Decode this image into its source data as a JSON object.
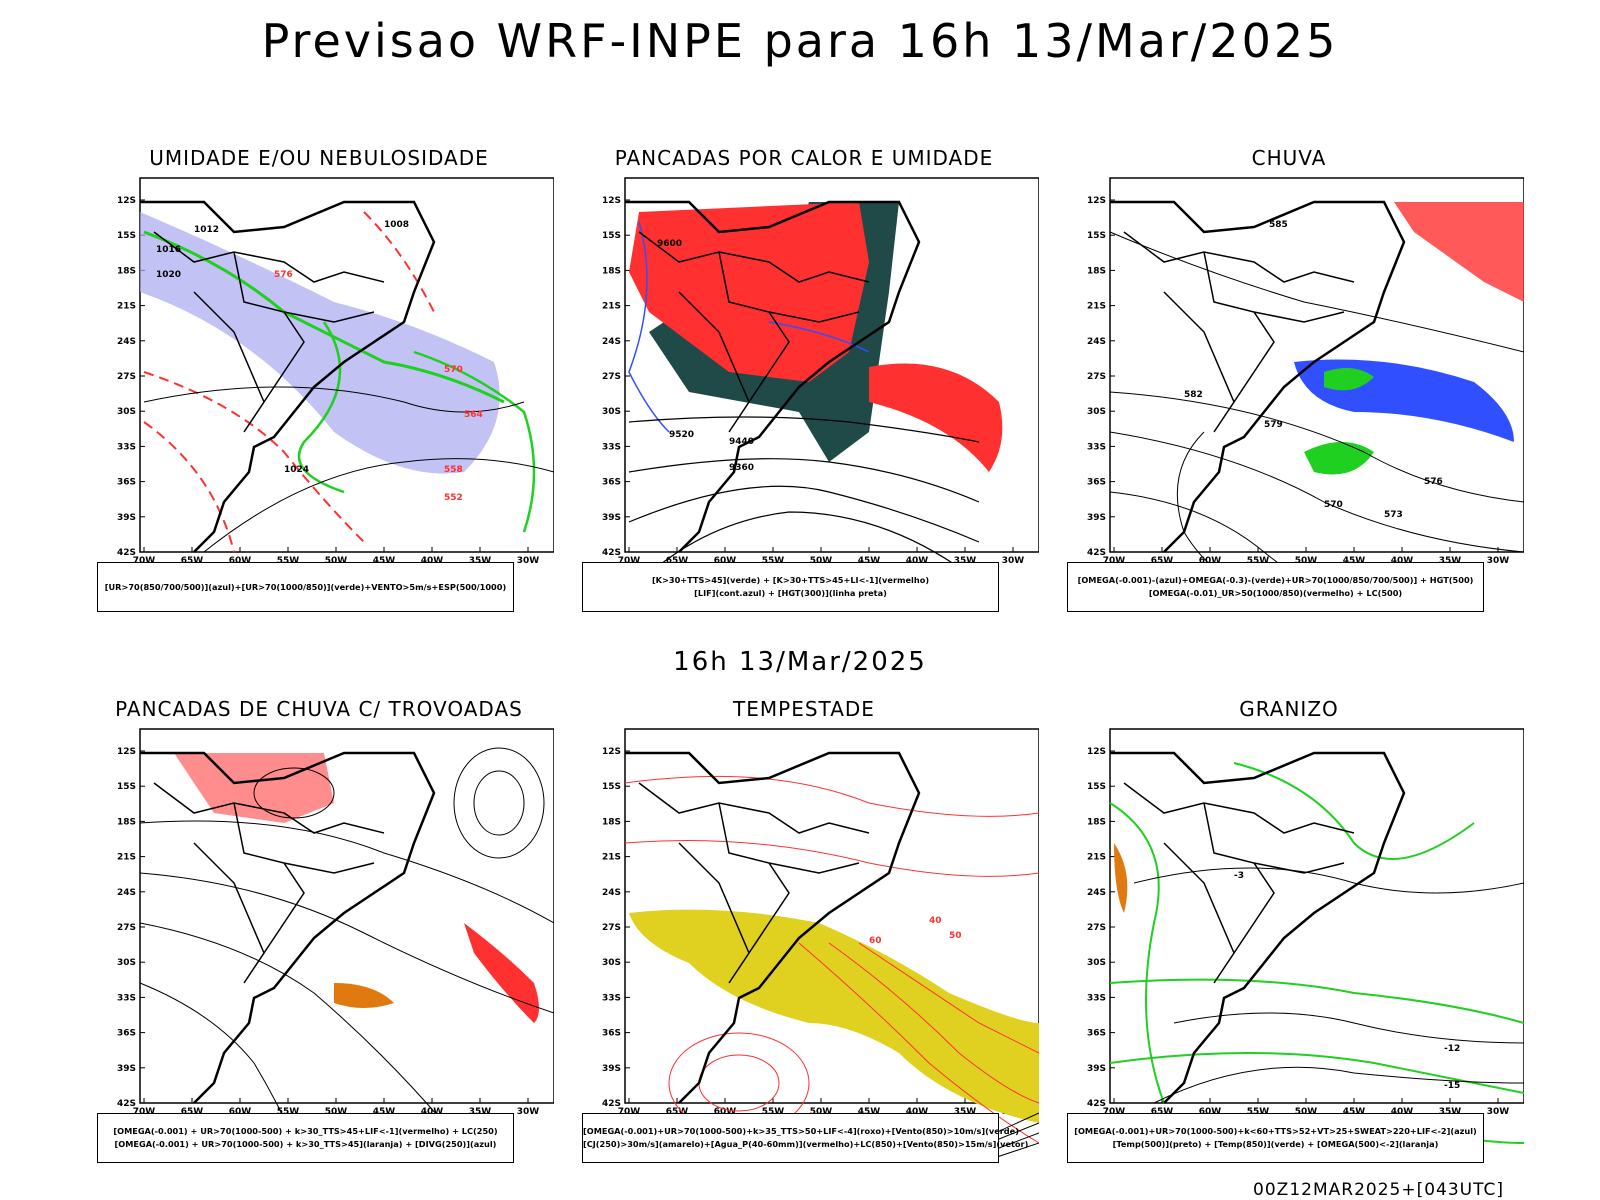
{
  "header": {
    "title": "Previsao WRF-INPE  para 16h 13/Mar/2025",
    "mid_time": "16h 13/Mar/2025",
    "footer_stamp": "00Z12MAR2025+[043UTC]"
  },
  "axes": {
    "lat_labels": [
      "12S",
      "15S",
      "18S",
      "21S",
      "24S",
      "27S",
      "30S",
      "33S",
      "36S",
      "39S",
      "42S"
    ],
    "lon_labels": [
      "70W",
      "65W",
      "60W",
      "55W",
      "50W",
      "45W",
      "40W",
      "35W",
      "30W"
    ]
  },
  "panels": [
    {
      "id": "umidade",
      "title": "UMIDADE E/OU NEBULOSIDADE",
      "legend": [
        "[UR>70(850/700/500)](azul)+[UR>70(1000/850)](verde)+VENTO>5m/s+ESP(500/1000)"
      ],
      "contour_labels": [
        "1012",
        "1016",
        "1020",
        "1024",
        "1008",
        "576",
        "570",
        "564",
        "558",
        "552"
      ]
    },
    {
      "id": "pancadas-calor",
      "title": "PANCADAS POR CALOR E UMIDADE",
      "legend": [
        "[K>30+TTS>45](verde) + [K>30+TTS>45+LI<-1](vermelho)",
        "[LIF](cont.azul) + [HGT(300)](linha preta)"
      ],
      "contour_labels": [
        "9600",
        "9520",
        "9440",
        "9360"
      ]
    },
    {
      "id": "chuva",
      "title": "CHUVA",
      "legend": [
        "[OMEGA(-0.001)-(azul)+OMEGA(-0.3)-(verde)+UR>70(1000/850/700/500)] + HGT(500)",
        "[OMEGA(-0.01)_UR>50(1000/850)(vermelho) + LC(500)"
      ],
      "contour_labels": [
        "585",
        "582",
        "579",
        "576",
        "573",
        "570"
      ]
    },
    {
      "id": "pancadas-trovoadas",
      "title": "PANCADAS DE CHUVA C/ TROVOADAS",
      "legend": [
        "[OMEGA(-0.001) + UR>70(1000-500) + k>30_TTS>45+LIF<-1](vermelho) + LC(250)",
        "[OMEGA(-0.001) + UR>70(1000-500) + k>30_TTS>45](laranja) + [DIVG(250)](azul)"
      ],
      "contour_labels": []
    },
    {
      "id": "tempestade",
      "title": "TEMPESTADE",
      "legend": [
        "[OMEGA(-0.001)+UR>70(1000-500)+k>35_TTS>50+LIF<-4](roxo)+[Vento(850)>10m/s](verde)",
        "[CJ(250)>30m/s](amarelo)+[Agua_P(40-60mm)](vermelho)+LC(850)+[Vento(850)>15m/s](vetor)"
      ],
      "contour_labels": [
        "40",
        "50",
        "60"
      ]
    },
    {
      "id": "granizo",
      "title": "GRANIZO",
      "legend": [
        "[OMEGA(-0.001)+UR>70(1000-500)+k<60+TTS>52+VT>25+SWEAT>220+LIF<-2](azul)",
        "[Temp(500)](preto) + [Temp(850)](verde) + [OMEGA(500)<-2](laranja)"
      ],
      "contour_labels": [
        "-3",
        "-12",
        "-15"
      ]
    }
  ],
  "colors": {
    "blue": "#3050ff",
    "green": "#20d020",
    "red": "#ff3030",
    "orange": "#e07a10",
    "yellow": "#e0d020",
    "darkteal": "#1f4a48",
    "lavender": "#a8a8f0"
  }
}
